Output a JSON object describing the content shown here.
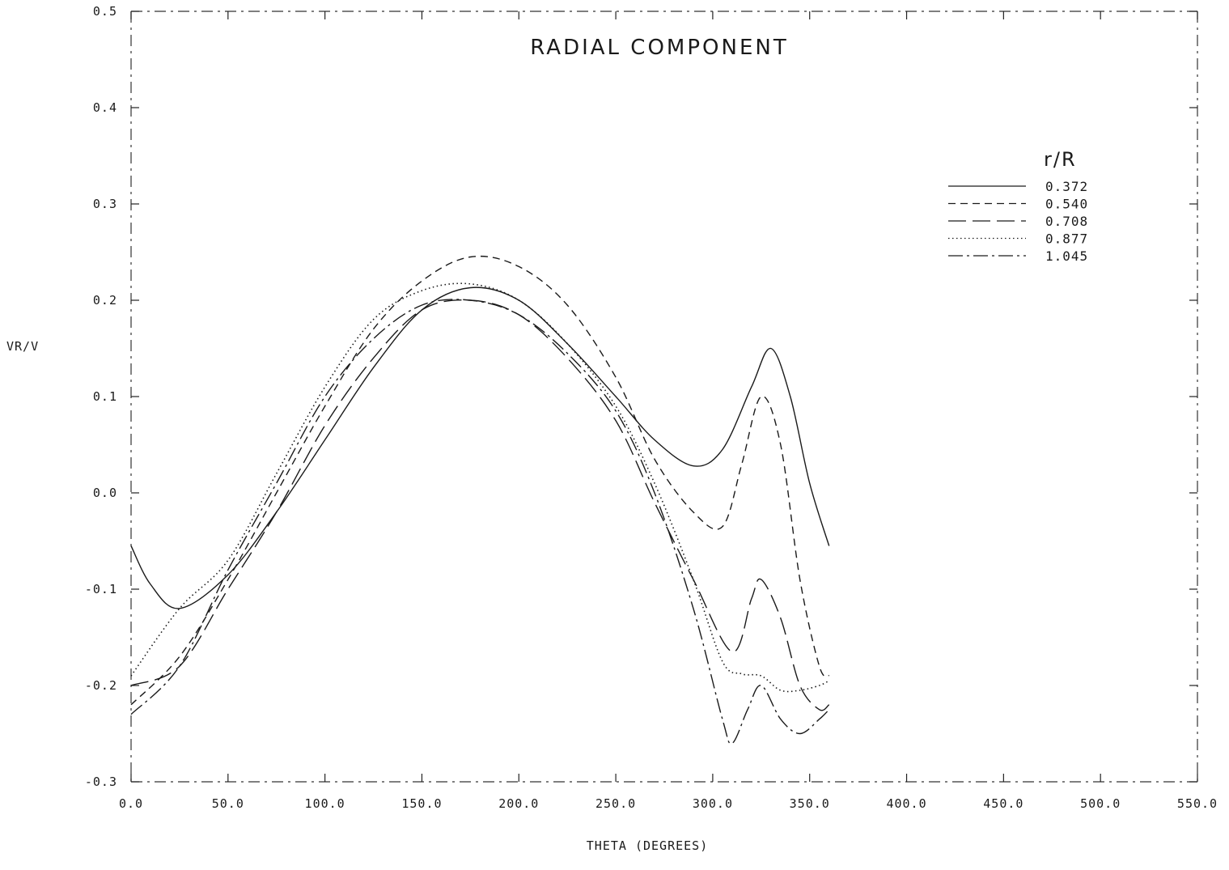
{
  "chart_data": {
    "type": "line",
    "title": "RADIAL COMPONENT",
    "xlabel": "THETA (DEGREES)",
    "ylabel": "VR/V",
    "xlim": [
      0,
      550
    ],
    "ylim": [
      -0.3,
      0.5
    ],
    "xticks": [
      "0.0",
      "50.0",
      "100.0",
      "150.0",
      "200.0",
      "250.0",
      "300.0",
      "350.0",
      "400.0",
      "450.0",
      "500.0",
      "550.0"
    ],
    "xtick_values": [
      0,
      50,
      100,
      150,
      200,
      250,
      300,
      350,
      400,
      450,
      500,
      550
    ],
    "yticks": [
      "-0.3",
      "-0.2",
      "-0.1",
      "0.0",
      "0.1",
      "0.2",
      "0.3",
      "0.4",
      "0.5"
    ],
    "ytick_values": [
      -0.3,
      -0.2,
      -0.1,
      0.0,
      0.1,
      0.2,
      0.3,
      0.4,
      0.5
    ],
    "grid": false,
    "legend": {
      "title": "r/R",
      "position": "top-right"
    },
    "series": [
      {
        "name": "0.372",
        "dash": "solid",
        "points": [
          [
            0,
            -0.055
          ],
          [
            10,
            -0.095
          ],
          [
            25,
            -0.12
          ],
          [
            50,
            -0.085
          ],
          [
            75,
            -0.02
          ],
          [
            100,
            0.055
          ],
          [
            125,
            0.13
          ],
          [
            150,
            0.19
          ],
          [
            175,
            0.213
          ],
          [
            200,
            0.2
          ],
          [
            225,
            0.155
          ],
          [
            250,
            0.1
          ],
          [
            270,
            0.055
          ],
          [
            290,
            0.028
          ],
          [
            305,
            0.045
          ],
          [
            320,
            0.11
          ],
          [
            330,
            0.15
          ],
          [
            340,
            0.1
          ],
          [
            350,
            0.01
          ],
          [
            360,
            -0.055
          ]
        ]
      },
      {
        "name": "0.540",
        "dash": "dashed",
        "points": [
          [
            0,
            -0.22
          ],
          [
            25,
            -0.17
          ],
          [
            50,
            -0.09
          ],
          [
            75,
            0.0
          ],
          [
            100,
            0.09
          ],
          [
            125,
            0.17
          ],
          [
            150,
            0.22
          ],
          [
            175,
            0.245
          ],
          [
            200,
            0.235
          ],
          [
            225,
            0.195
          ],
          [
            250,
            0.12
          ],
          [
            270,
            0.035
          ],
          [
            290,
            -0.02
          ],
          [
            305,
            -0.035
          ],
          [
            315,
            0.03
          ],
          [
            325,
            0.1
          ],
          [
            335,
            0.05
          ],
          [
            345,
            -0.09
          ],
          [
            355,
            -0.18
          ],
          [
            360,
            -0.19
          ]
        ]
      },
      {
        "name": "0.708",
        "dash": "longdash",
        "points": [
          [
            0,
            -0.2
          ],
          [
            25,
            -0.18
          ],
          [
            50,
            -0.1
          ],
          [
            75,
            -0.02
          ],
          [
            100,
            0.07
          ],
          [
            125,
            0.14
          ],
          [
            150,
            0.19
          ],
          [
            175,
            0.2
          ],
          [
            200,
            0.185
          ],
          [
            225,
            0.14
          ],
          [
            250,
            0.075
          ],
          [
            270,
            -0.01
          ],
          [
            290,
            -0.09
          ],
          [
            310,
            -0.165
          ],
          [
            320,
            -0.11
          ],
          [
            325,
            -0.09
          ],
          [
            335,
            -0.13
          ],
          [
            345,
            -0.2
          ],
          [
            355,
            -0.225
          ],
          [
            360,
            -0.22
          ]
        ]
      },
      {
        "name": "0.877",
        "dash": "dotted",
        "points": [
          [
            0,
            -0.19
          ],
          [
            25,
            -0.12
          ],
          [
            50,
            -0.07
          ],
          [
            75,
            0.02
          ],
          [
            100,
            0.11
          ],
          [
            125,
            0.18
          ],
          [
            150,
            0.21
          ],
          [
            175,
            0.217
          ],
          [
            200,
            0.2
          ],
          [
            225,
            0.155
          ],
          [
            250,
            0.09
          ],
          [
            270,
            0.01
          ],
          [
            290,
            -0.09
          ],
          [
            305,
            -0.175
          ],
          [
            315,
            -0.188
          ],
          [
            325,
            -0.19
          ],
          [
            335,
            -0.205
          ],
          [
            345,
            -0.205
          ],
          [
            355,
            -0.2
          ],
          [
            360,
            -0.195
          ]
        ]
      },
      {
        "name": "1.045",
        "dash": "dashdot",
        "points": [
          [
            0,
            -0.23
          ],
          [
            25,
            -0.18
          ],
          [
            50,
            -0.08
          ],
          [
            75,
            0.01
          ],
          [
            100,
            0.1
          ],
          [
            125,
            0.16
          ],
          [
            150,
            0.195
          ],
          [
            175,
            0.2
          ],
          [
            200,
            0.185
          ],
          [
            225,
            0.145
          ],
          [
            250,
            0.085
          ],
          [
            270,
            0.0
          ],
          [
            290,
            -0.12
          ],
          [
            305,
            -0.235
          ],
          [
            310,
            -0.26
          ],
          [
            318,
            -0.225
          ],
          [
            325,
            -0.2
          ],
          [
            335,
            -0.235
          ],
          [
            345,
            -0.25
          ],
          [
            355,
            -0.235
          ],
          [
            360,
            -0.225
          ]
        ]
      }
    ]
  }
}
